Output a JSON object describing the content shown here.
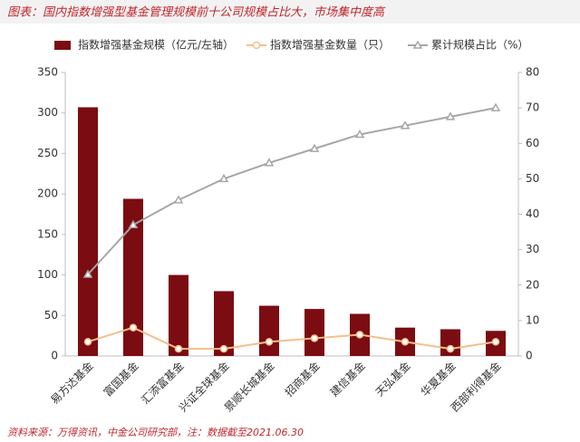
{
  "chart_data": {
    "type": "combo",
    "title": "图表：国内指数增强型基金管理规模前十公司规模占比大，市场集中度高",
    "source": "资料来源：万得资讯，中金公司研究部，注：数据截至2021.06.30",
    "categories": [
      "易方达基金",
      "富国基金",
      "汇添富基金",
      "兴证全球基金",
      "景顺长城基金",
      "招商基金",
      "建信基金",
      "天弘基金",
      "华夏基金",
      "西部利得基金"
    ],
    "series": [
      {
        "name": "指数增强基金规模（亿元/左轴）",
        "type": "bar",
        "color": "#7b0c12",
        "values": [
          307,
          194,
          100,
          80,
          62,
          58,
          52,
          35,
          33,
          31
        ]
      },
      {
        "name": "指数增强基金数量（只）",
        "type": "line",
        "axis": "y2",
        "color": "#f4bf8c",
        "values": [
          4,
          8,
          2,
          2,
          4,
          5,
          6,
          4,
          2,
          4
        ]
      },
      {
        "name": "累计规模占比（%）",
        "type": "line",
        "axis": "y2",
        "color": "#a6a6a6",
        "values": [
          23,
          37,
          44,
          50,
          54.5,
          58.5,
          62.5,
          65,
          67.5,
          70
        ]
      }
    ],
    "ylim": [
      0,
      350
    ],
    "yticks": [
      0,
      50,
      100,
      150,
      200,
      250,
      300,
      350
    ],
    "y2lim": [
      0,
      80
    ],
    "y2ticks": [
      0,
      10,
      20,
      30,
      40,
      50,
      60,
      70,
      80
    ]
  }
}
